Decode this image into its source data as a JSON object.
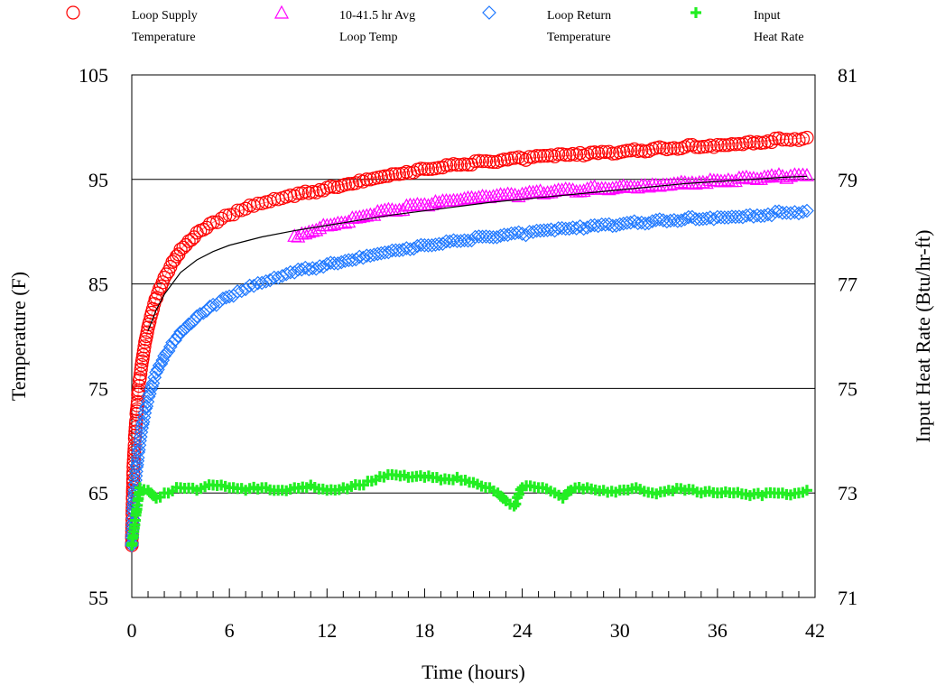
{
  "chart_data": {
    "type": "scatter",
    "xlabel": "Time (hours)",
    "ylabel": "Temperature (F)",
    "y2label": "Input Heat Rate (Btu/hr-ft)",
    "xlim": [
      0,
      42
    ],
    "ylim": [
      55,
      105
    ],
    "y2lim": [
      71,
      81
    ],
    "x_ticks": [
      0,
      6,
      12,
      18,
      24,
      30,
      36,
      42
    ],
    "y_ticks": [
      55,
      65,
      75,
      85,
      95,
      105
    ],
    "y2_ticks": [
      71,
      73,
      75,
      77,
      79,
      81
    ],
    "gridlines_y": [
      65,
      75,
      85,
      95
    ],
    "legend_position": "top",
    "legend": [
      {
        "line1": "Loop Supply",
        "line2": "Temperature",
        "marker": "circle",
        "color": "#ff0000"
      },
      {
        "line1": "10-41.5 hr Avg",
        "line2": "Loop Temp",
        "marker": "triangle",
        "color": "#ff00ff"
      },
      {
        "line1": "Loop Return",
        "line2": "Temperature",
        "marker": "diamond",
        "color": "#1e78ff"
      },
      {
        "line1": "Input",
        "line2": "Heat Rate",
        "marker": "plus",
        "color": "#22ee22"
      }
    ],
    "series": [
      {
        "name": "Loop Supply Temperature",
        "axis": "left",
        "marker": "circle",
        "color": "#ff0000",
        "x": [
          0,
          0.1,
          0.2,
          0.3,
          0.4,
          0.5,
          0.7,
          0.9,
          1.1,
          1.3,
          1.6,
          2,
          2.5,
          3,
          4,
          5,
          6,
          7,
          8,
          9,
          10,
          12,
          14,
          16,
          18,
          20,
          22,
          24,
          26,
          28,
          30,
          32,
          34,
          36,
          38,
          40,
          41.5
        ],
        "y": [
          60,
          67.5,
          70.5,
          72.8,
          74.6,
          76,
          78.2,
          80,
          81.4,
          82.6,
          84.1,
          85.6,
          87.1,
          88.3,
          89.9,
          90.9,
          91.6,
          92.2,
          92.7,
          93.1,
          93.4,
          94.2,
          94.9,
          95.5,
          96,
          96.4,
          96.7,
          97,
          97.2,
          97.4,
          97.6,
          97.9,
          98.1,
          98.3,
          98.6,
          98.8,
          99
        ]
      },
      {
        "name": "10-41.5 hr Avg Loop Temp",
        "axis": "left",
        "marker": "triangle",
        "color": "#ff00ff",
        "x": [
          10,
          12,
          14,
          16,
          18,
          20,
          22,
          24,
          26,
          28,
          30,
          32,
          34,
          36,
          38,
          40,
          41.5
        ],
        "y": [
          89.6,
          90.6,
          91.4,
          92.1,
          92.6,
          93,
          93.3,
          93.6,
          93.9,
          94.1,
          94.3,
          94.5,
          94.7,
          94.9,
          95.1,
          95.3,
          95.4
        ]
      },
      {
        "name": "Loop Return Temperature",
        "axis": "left",
        "marker": "diamond",
        "color": "#1e78ff",
        "x": [
          0,
          0.1,
          0.2,
          0.3,
          0.4,
          0.5,
          0.7,
          0.9,
          1.1,
          1.3,
          1.6,
          2,
          2.5,
          3,
          4,
          5,
          6,
          7,
          8,
          9,
          10,
          12,
          14,
          16,
          18,
          20,
          22,
          24,
          26,
          28,
          30,
          32,
          34,
          36,
          38,
          40,
          41.5
        ],
        "y": [
          60,
          63.7,
          65.8,
          67.5,
          68.9,
          70,
          71.8,
          73.3,
          74.5,
          75.5,
          76.8,
          78.1,
          79.4,
          80.4,
          81.9,
          83,
          83.8,
          84.5,
          85.1,
          85.6,
          86.1,
          86.9,
          87.6,
          88.2,
          88.7,
          89.1,
          89.5,
          89.8,
          90.1,
          90.4,
          90.7,
          91,
          91.2,
          91.4,
          91.6,
          91.8,
          92
        ]
      },
      {
        "name": "Input Heat Rate",
        "axis": "right",
        "marker": "plus",
        "color": "#22ee22",
        "x": [
          0,
          0.5,
          1,
          1.5,
          2,
          3,
          4,
          5,
          6,
          7,
          8,
          9,
          10,
          11,
          12,
          13,
          14,
          15,
          16,
          17,
          18,
          19,
          20,
          21,
          22,
          22.5,
          23,
          23.5,
          24,
          25,
          26,
          26.5,
          27,
          28,
          29,
          30,
          31,
          32,
          33,
          34,
          35,
          36,
          37,
          38,
          39,
          40,
          41,
          41.5
        ],
        "y": [
          72,
          73.1,
          73.05,
          72.9,
          73.0,
          73.1,
          73.05,
          73.15,
          73.1,
          73.05,
          73.1,
          73.05,
          73.1,
          73.15,
          73.05,
          73.1,
          73.15,
          73.25,
          73.35,
          73.3,
          73.3,
          73.25,
          73.3,
          73.2,
          73.1,
          73.0,
          72.85,
          72.75,
          73.1,
          73.1,
          73.0,
          72.9,
          73.05,
          73.1,
          73.05,
          73.05,
          73.1,
          73.0,
          73.05,
          73.05,
          73.0,
          73.0,
          73.0,
          72.95,
          73.0,
          73.0,
          73.0,
          73.05
        ]
      }
    ],
    "fit_curve": {
      "name": "supply fit",
      "axis": "left",
      "color": "#000000",
      "x": [
        1,
        1.5,
        2,
        3,
        4,
        5,
        6,
        8,
        10,
        12,
        14,
        16,
        18,
        20,
        22,
        24,
        26,
        28,
        30,
        32,
        34,
        36,
        38,
        40,
        41.5
      ],
      "y": [
        80.5,
        82.5,
        84.0,
        86.1,
        87.3,
        88.1,
        88.7,
        89.5,
        90.1,
        90.6,
        91.1,
        91.6,
        92.0,
        92.4,
        92.8,
        93.1,
        93.4,
        93.7,
        94.0,
        94.3,
        94.6,
        94.8,
        95.0,
        95.2,
        95.3
      ]
    }
  }
}
